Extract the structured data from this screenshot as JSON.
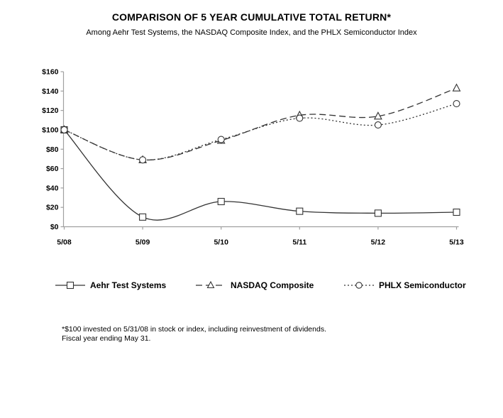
{
  "title": "COMPARISON OF 5 YEAR CUMULATIVE TOTAL RETURN*",
  "subtitle": "Among Aehr Test Systems, the NASDAQ Composite Index, and the PHLX Semiconductor Index",
  "footnote": {
    "line1": "*$100 invested on 5/31/08 in stock or index, including reinvestment of dividends.",
    "line2": "Fiscal year ending May 31."
  },
  "colors": {
    "series_line": "#333333",
    "axis_line": "#a0a0a0",
    "text": "#000000",
    "marker_fill": "#ffffff"
  },
  "chart_data": {
    "type": "line",
    "title": "COMPARISON OF 5 YEAR CUMULATIVE TOTAL RETURN*",
    "subtitle": "Among Aehr Test Systems, the NASDAQ Composite Index, and the PHLX Semiconductor Index",
    "categories": [
      "5/08",
      "5/09",
      "5/10",
      "5/11",
      "5/12",
      "5/13"
    ],
    "series": [
      {
        "name": "Aehr Test Systems",
        "marker": "square",
        "line_style": "solid",
        "values": [
          100,
          10,
          26,
          16,
          14,
          15
        ]
      },
      {
        "name": "NASDAQ Composite",
        "marker": "triangle",
        "line_style": "dashed",
        "values": [
          100,
          69,
          89,
          115,
          114,
          143
        ]
      },
      {
        "name": "PHLX Semiconductor",
        "marker": "circle",
        "line_style": "dotted",
        "values": [
          100,
          69,
          90,
          112,
          105,
          127
        ]
      }
    ],
    "xlabel": "",
    "ylabel": "",
    "ylim": [
      0,
      160
    ],
    "ytick_step": 20,
    "ytick_labels": [
      "$0",
      "$20",
      "$40",
      "$60",
      "$80",
      "$100",
      "$120",
      "$140",
      "$160"
    ],
    "grid": false,
    "legend_position": "bottom",
    "curve": "smoothed"
  }
}
